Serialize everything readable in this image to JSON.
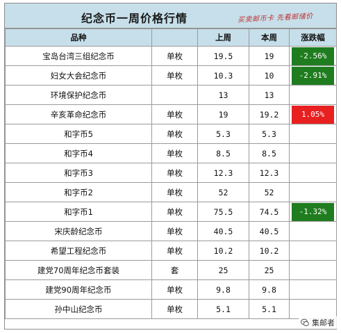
{
  "title": "纪念币一周价格行情",
  "slogan": "买卖邮币卡 先看邮储价",
  "headers": {
    "name": "品种",
    "unit": "",
    "last_week": "上周",
    "this_week": "本周",
    "change": "涨跌幅"
  },
  "rows": [
    {
      "name": "宝岛台湾三组纪念币",
      "unit": "单枚",
      "last": "19.5",
      "this": "19",
      "change": "-2.56%",
      "dir": "down"
    },
    {
      "name": "妇女大会纪念币",
      "unit": "单枚",
      "last": "10.3",
      "this": "10",
      "change": "-2.91%",
      "dir": "down"
    },
    {
      "name": "环境保护纪念币",
      "unit": "",
      "last": "13",
      "this": "13",
      "change": "",
      "dir": ""
    },
    {
      "name": "辛亥革命纪念币",
      "unit": "单枚",
      "last": "19",
      "this": "19.2",
      "change": "1.05%",
      "dir": "up"
    },
    {
      "name": "和字币5",
      "unit": "单枚",
      "last": "5.3",
      "this": "5.3",
      "change": "",
      "dir": ""
    },
    {
      "name": "和字币4",
      "unit": "单枚",
      "last": "8.5",
      "this": "8.5",
      "change": "",
      "dir": ""
    },
    {
      "name": "和字币3",
      "unit": "单枚",
      "last": "12.3",
      "this": "12.3",
      "change": "",
      "dir": ""
    },
    {
      "name": "和字币2",
      "unit": "单枚",
      "last": "52",
      "this": "52",
      "change": "",
      "dir": ""
    },
    {
      "name": "和字币1",
      "unit": "单枚",
      "last": "75.5",
      "this": "74.5",
      "change": "-1.32%",
      "dir": "down"
    },
    {
      "name": "宋庆龄纪念币",
      "unit": "单枚",
      "last": "40.5",
      "this": "40.5",
      "change": "",
      "dir": ""
    },
    {
      "name": "希望工程纪念币",
      "unit": "单枚",
      "last": "10.2",
      "this": "10.2",
      "change": "",
      "dir": ""
    },
    {
      "name": "建党70周年纪念币套装",
      "unit": "套",
      "last": "25",
      "this": "25",
      "change": "",
      "dir": ""
    },
    {
      "name": "建党90周年纪念币",
      "unit": "单枚",
      "last": "9.8",
      "this": "9.8",
      "change": "",
      "dir": ""
    },
    {
      "name": "孙中山纪念币",
      "unit": "单枚",
      "last": "5.1",
      "this": "5.1",
      "change": "",
      "dir": ""
    }
  ],
  "colors": {
    "header_bg": "#c6dfea",
    "down": "#1f7d1f",
    "up": "#e82020"
  },
  "watermark": {
    "icon": "wechat-icon",
    "text": "集邮者"
  }
}
